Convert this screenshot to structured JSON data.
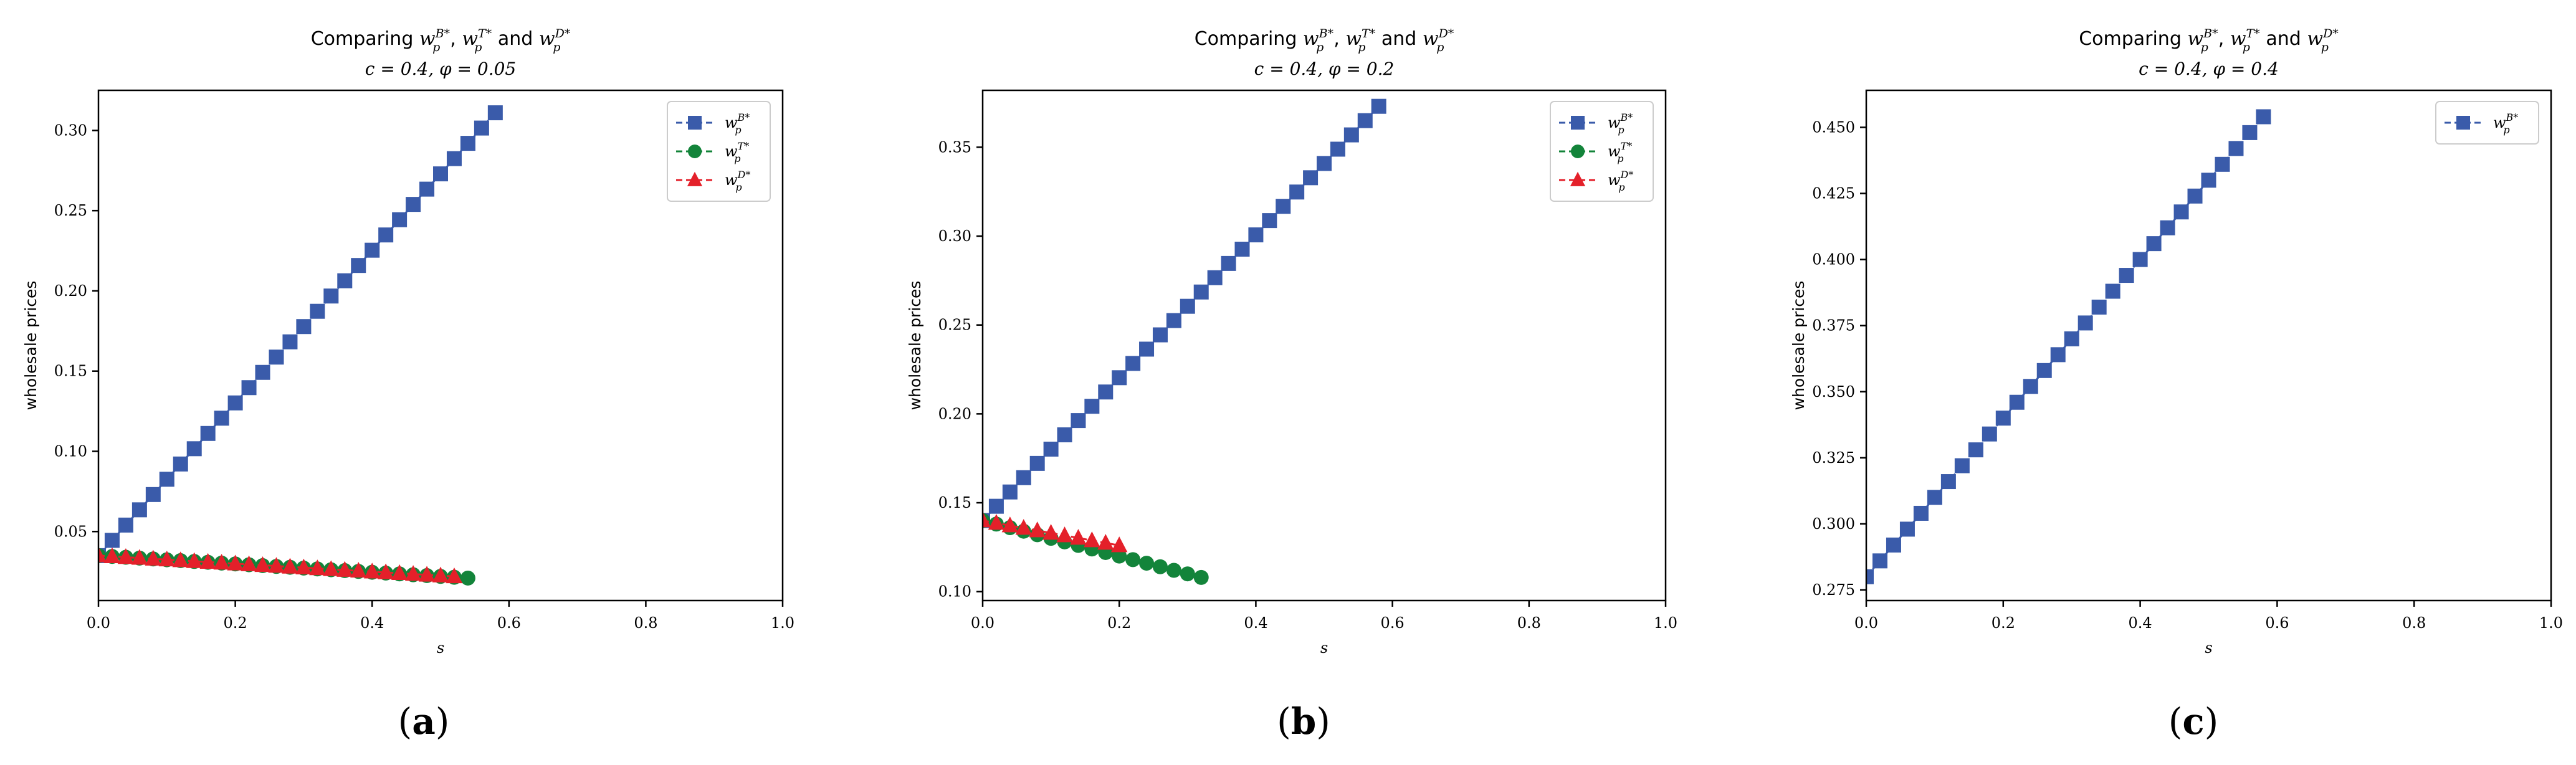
{
  "colors": {
    "blue": "#3a5baa",
    "green": "#13843a",
    "red": "#e4202a",
    "axis": "#000000",
    "background": "#ffffff"
  },
  "chart_data": [
    {
      "type": "line",
      "panel_label": "(a)",
      "title": "Comparing wpB*, wpT* and wpD*",
      "title_parts": {
        "prefix": "Comparing ",
        "sep1": ", ",
        "sep2": " and ",
        "sub": "p",
        "sup_B": "B*",
        "sup_T": "T*",
        "sup_D": "D*"
      },
      "subtitle": "c = 0.4, φ = 0.05",
      "xlabel": "s",
      "ylabel": "wholesale prices",
      "xlim": [
        0,
        1.0
      ],
      "ylim": [
        0.007,
        0.325
      ],
      "xticks": [
        0,
        0.2,
        0.4,
        0.6,
        0.8,
        1.0
      ],
      "xtick_labels": [
        "0.0",
        "0.2",
        "0.4",
        "0.6",
        "0.8",
        "1.0"
      ],
      "yticks": [
        0.05,
        0.1,
        0.15,
        0.2,
        0.25,
        0.3
      ],
      "ytick_labels": [
        "0.05",
        "0.10",
        "0.15",
        "0.20",
        "0.25",
        "0.30"
      ],
      "legend_position": "top-right",
      "series": [
        {
          "name": "wpB*",
          "sup": "B*",
          "marker": "square",
          "color": "blue",
          "x_start": 0.0,
          "x_step": 0.02,
          "count": 30,
          "y_start": 0.035,
          "y_end": 0.311
        },
        {
          "name": "wpT*",
          "sup": "T*",
          "marker": "circle",
          "color": "green",
          "x_start": 0.0,
          "x_step": 0.02,
          "count": 28,
          "y_start": 0.035,
          "y_end": 0.021
        },
        {
          "name": "wpD*",
          "sup": "D*",
          "marker": "triangle",
          "color": "red",
          "x_start": 0.0,
          "x_step": 0.02,
          "count": 27,
          "y_start": 0.035,
          "y_end": 0.022
        }
      ]
    },
    {
      "type": "line",
      "panel_label": "(b)",
      "title": "Comparing wpB*, wpT* and wpD*",
      "title_parts": {
        "prefix": "Comparing ",
        "sep1": ", ",
        "sep2": " and ",
        "sub": "p",
        "sup_B": "B*",
        "sup_T": "T*",
        "sup_D": "D*"
      },
      "subtitle": "c = 0.4, φ = 0.2",
      "xlabel": "s",
      "ylabel": "wholesale prices",
      "xlim": [
        0,
        1.0
      ],
      "ylim": [
        0.095,
        0.382
      ],
      "xticks": [
        0,
        0.2,
        0.4,
        0.6,
        0.8,
        1.0
      ],
      "xtick_labels": [
        "0.0",
        "0.2",
        "0.4",
        "0.6",
        "0.8",
        "1.0"
      ],
      "yticks": [
        0.1,
        0.15,
        0.2,
        0.25,
        0.3,
        0.35
      ],
      "ytick_labels": [
        "0.10",
        "0.15",
        "0.20",
        "0.25",
        "0.30",
        "0.35"
      ],
      "legend_position": "top-right",
      "series": [
        {
          "name": "wpB*",
          "sup": "B*",
          "marker": "square",
          "color": "blue",
          "x_start": 0.0,
          "x_step": 0.02,
          "count": 30,
          "y_start": 0.14,
          "y_end": 0.373
        },
        {
          "name": "wpT*",
          "sup": "T*",
          "marker": "circle",
          "color": "green",
          "x_start": 0.0,
          "x_step": 0.02,
          "count": 17,
          "y_start": 0.14,
          "y_end": 0.108
        },
        {
          "name": "wpD*",
          "sup": "D*",
          "marker": "triangle",
          "color": "red",
          "x_start": 0.0,
          "x_step": 0.02,
          "count": 11,
          "y_start": 0.14,
          "y_end": 0.126
        }
      ]
    },
    {
      "type": "line",
      "panel_label": "(c)",
      "title": "Comparing wpB*, wpT* and wpD*",
      "title_parts": {
        "prefix": "Comparing ",
        "sep1": ", ",
        "sep2": " and ",
        "sub": "p",
        "sup_B": "B*",
        "sup_T": "T*",
        "sup_D": "D*"
      },
      "subtitle": "c = 0.4, φ = 0.4",
      "xlabel": "s",
      "ylabel": "wholesale prices",
      "xlim": [
        0,
        1.0
      ],
      "ylim": [
        0.271,
        0.464
      ],
      "xticks": [
        0,
        0.2,
        0.4,
        0.6,
        0.8,
        1.0
      ],
      "xtick_labels": [
        "0.0",
        "0.2",
        "0.4",
        "0.6",
        "0.8",
        "1.0"
      ],
      "yticks": [
        0.275,
        0.3,
        0.325,
        0.35,
        0.375,
        0.4,
        0.425,
        0.45
      ],
      "ytick_labels": [
        "0.275",
        "0.300",
        "0.325",
        "0.350",
        "0.375",
        "0.400",
        "0.425",
        "0.450"
      ],
      "legend_position": "top-right",
      "series": [
        {
          "name": "wpB*",
          "sup": "B*",
          "marker": "square",
          "color": "blue",
          "x_start": 0.0,
          "x_step": 0.02,
          "count": 30,
          "y_start": 0.28,
          "y_end": 0.454
        }
      ]
    }
  ]
}
